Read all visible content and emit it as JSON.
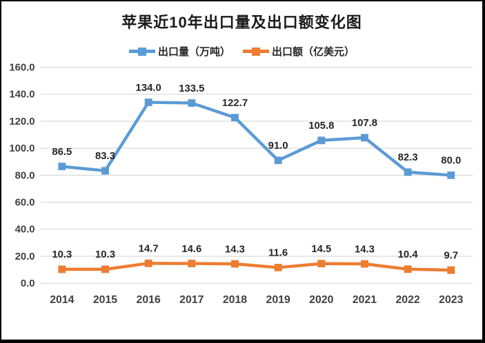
{
  "chart_data": {
    "type": "line",
    "title": "苹果近10年出口量及出口额变化图",
    "categories": [
      "2014",
      "2015",
      "2016",
      "2017",
      "2018",
      "2019",
      "2020",
      "2021",
      "2022",
      "2023"
    ],
    "series": [
      {
        "name": "出口量（万吨）",
        "color": "#5B9BD5",
        "values": [
          86.5,
          83.3,
          134.0,
          133.5,
          122.7,
          91.0,
          105.8,
          107.8,
          82.3,
          80.0
        ]
      },
      {
        "name": "出口额（亿美元）",
        "color": "#ED7D31",
        "values": [
          10.3,
          10.3,
          14.7,
          14.6,
          14.3,
          11.6,
          14.5,
          14.3,
          10.4,
          9.7
        ]
      }
    ],
    "xlabel": "",
    "ylabel": "",
    "ylim": [
      0,
      160
    ],
    "ytick_step": 20,
    "ytick_labels": [
      "0.0",
      "20.0",
      "40.0",
      "60.0",
      "80.0",
      "100.0",
      "120.0",
      "140.0",
      "160.0"
    ],
    "grid": true,
    "legend_position": "top",
    "colors": {
      "gridline": "#D9D9D9",
      "axis_label": "#404040",
      "data_label": "#262626",
      "title": "#1a1a1a",
      "border": "#000000",
      "background": "#FFFFFF"
    }
  }
}
